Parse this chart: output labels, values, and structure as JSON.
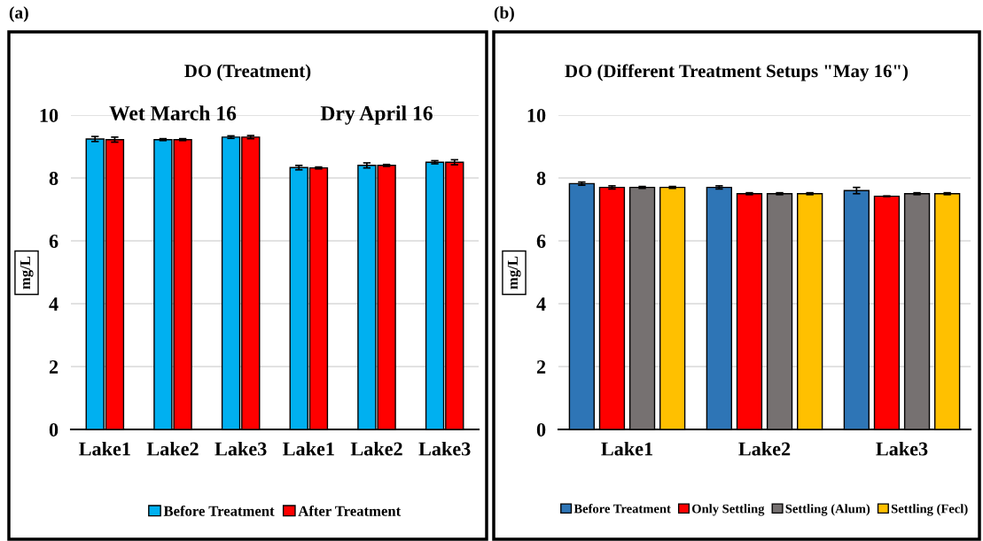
{
  "chart_data": [
    {
      "type": "bar",
      "title": "DO (Treatment)",
      "ylabel": "mg/L",
      "annotations": [
        "(a)",
        "Wet March 16",
        "Dry April 16"
      ],
      "categories": [
        "Lake1",
        "Lake2",
        "Lake3",
        "Lake1",
        "Lake2",
        "Lake3"
      ],
      "series": [
        {
          "name": "Before Treatment",
          "color": "#00b0f0",
          "values": [
            9.24,
            9.22,
            9.3,
            8.33,
            8.4,
            8.5
          ],
          "errors": [
            0.08,
            0.03,
            0.04,
            0.07,
            0.08,
            0.05
          ]
        },
        {
          "name": "After Treatment",
          "color": "#ff0000",
          "values": [
            9.22,
            9.22,
            9.3,
            8.32,
            8.4,
            8.5
          ],
          "errors": [
            0.08,
            0.03,
            0.05,
            0.03,
            0.03,
            0.08
          ]
        }
      ],
      "ylim": [
        0,
        10
      ],
      "yticks": [
        0,
        2,
        4,
        6,
        8,
        10
      ],
      "grid": "y",
      "legend": "bottom"
    },
    {
      "type": "bar",
      "title": "DO (Different Treatment Setups \"May 16\")",
      "ylabel": "mg/L",
      "annotations": [
        "(b)"
      ],
      "categories": [
        "Lake1",
        "Lake2",
        "Lake3"
      ],
      "series": [
        {
          "name": "Before Treatment",
          "color": "#2e75b6",
          "values": [
            7.82,
            7.7,
            7.6
          ],
          "errors": [
            0.05,
            0.05,
            0.1
          ]
        },
        {
          "name": "Only Settling",
          "color": "#ff0000",
          "values": [
            7.7,
            7.5,
            7.42
          ],
          "errors": [
            0.05,
            0.03,
            0.01
          ]
        },
        {
          "name": "Settling (Alum)",
          "color": "#767171",
          "values": [
            7.7,
            7.5,
            7.5
          ],
          "errors": [
            0.03,
            0.03,
            0.03
          ]
        },
        {
          "name": "Settling (Fecl)",
          "color": "#ffc000",
          "values": [
            7.7,
            7.5,
            7.5
          ],
          "errors": [
            0.03,
            0.03,
            0.03
          ]
        }
      ],
      "ylim": [
        0,
        10
      ],
      "yticks": [
        0,
        2,
        4,
        6,
        8,
        10
      ],
      "grid": "y",
      "legend": "bottom"
    }
  ]
}
